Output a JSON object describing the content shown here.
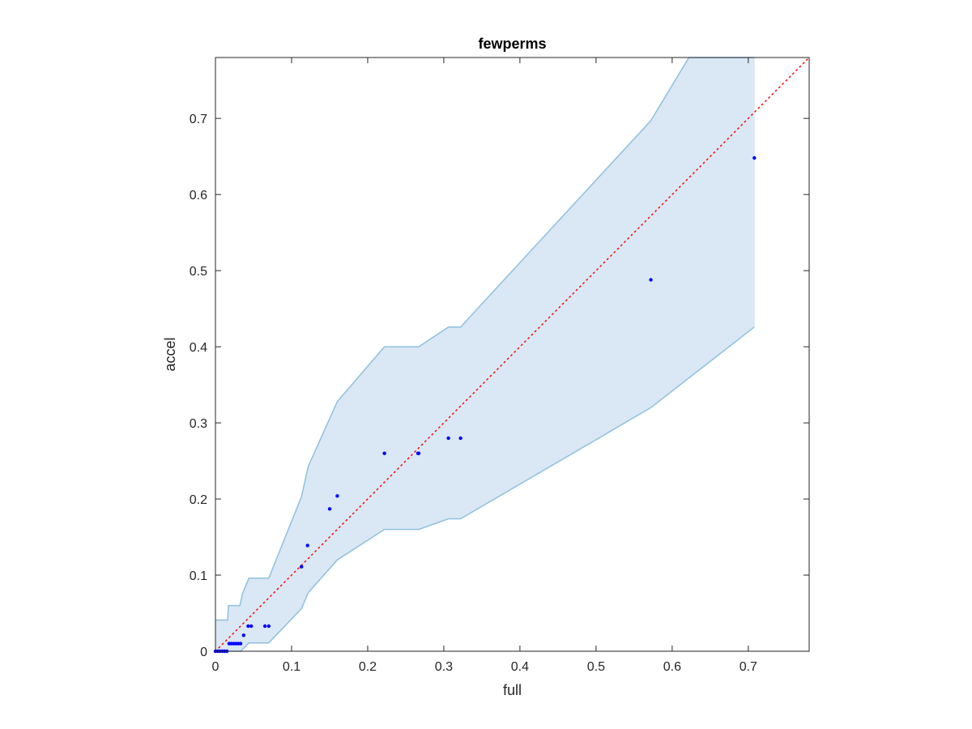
{
  "chart_data": {
    "type": "scatter",
    "title": "fewperms",
    "xlabel": "full",
    "ylabel": "accel",
    "xlim": [
      0,
      0.78
    ],
    "ylim": [
      0,
      0.78
    ],
    "xticks": [
      0,
      0.1,
      0.2,
      0.3,
      0.4,
      0.5,
      0.6,
      0.7
    ],
    "yticks": [
      0,
      0.1,
      0.2,
      0.3,
      0.4,
      0.5,
      0.6,
      0.7
    ],
    "xtick_labels": [
      "0",
      "0.1",
      "0.2",
      "0.3",
      "0.4",
      "0.5",
      "0.6",
      "0.7"
    ],
    "ytick_labels": [
      "0",
      "0.1",
      "0.2",
      "0.3",
      "0.4",
      "0.5",
      "0.6",
      "0.7"
    ],
    "grid": false,
    "points": {
      "x": [
        0,
        0.003,
        0.006,
        0.009,
        0.012,
        0.015,
        0.018,
        0.021,
        0.024,
        0.027,
        0.03,
        0.033,
        0.037,
        0.043,
        0.047,
        0.065,
        0.07,
        0.113,
        0.121,
        0.15,
        0.16,
        0.222,
        0.266,
        0.267,
        0.306,
        0.322,
        0.572,
        0.708
      ],
      "y": [
        0,
        0,
        0,
        0,
        0,
        0,
        0.01,
        0.01,
        0.01,
        0.01,
        0.01,
        0.01,
        0.021,
        0.033,
        0.033,
        0.033,
        0.033,
        0.111,
        0.139,
        0.187,
        0.204,
        0.26,
        0.26,
        0.26,
        0.28,
        0.28,
        0.488,
        0.648
      ],
      "color": "#0000ff"
    },
    "band": {
      "color_fill": "#d9e8f4",
      "color_edge": "#8fc0e0",
      "upper": {
        "x": [
          0,
          0.008,
          0.016,
          0.017,
          0.032,
          0.036,
          0.044,
          0.07,
          0.113,
          0.122,
          0.16,
          0.222,
          0.267,
          0.306,
          0.322,
          0.572,
          0.622,
          0.708
        ],
        "y": [
          0.041,
          0.041,
          0.041,
          0.06,
          0.06,
          0.077,
          0.096,
          0.096,
          0.203,
          0.243,
          0.328,
          0.4,
          0.4,
          0.426,
          0.426,
          0.697,
          0.78,
          0.78
        ]
      },
      "lower": {
        "x": [
          0,
          0.033,
          0.044,
          0.07,
          0.113,
          0.122,
          0.16,
          0.222,
          0.267,
          0.306,
          0.322,
          0.572,
          0.708
        ],
        "y": [
          0,
          0,
          0.011,
          0.011,
          0.056,
          0.077,
          0.12,
          0.16,
          0.16,
          0.174,
          0.174,
          0.32,
          0.426
        ]
      }
    },
    "reference_line": {
      "x": [
        0,
        0.78
      ],
      "y": [
        0,
        0.78
      ],
      "color": "#ff0000",
      "style": "dotted"
    }
  }
}
